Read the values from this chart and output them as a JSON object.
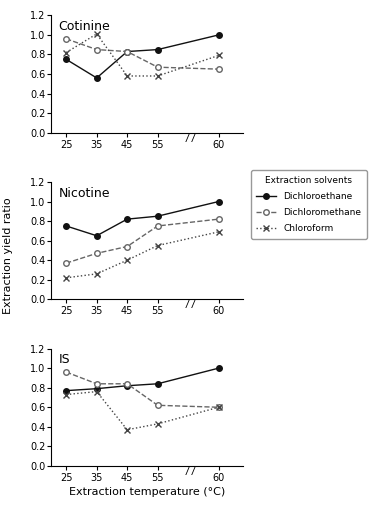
{
  "x_positions": [
    0,
    1,
    2,
    3,
    5
  ],
  "x_labels": [
    "25",
    "35",
    "45",
    "55",
    "60"
  ],
  "cotinine": {
    "dichloroethane": [
      0.75,
      0.56,
      0.83,
      0.85,
      1.0
    ],
    "dichloromethane": [
      0.96,
      0.85,
      0.83,
      0.67,
      0.65
    ],
    "chloroform": [
      0.82,
      1.01,
      0.58,
      0.58,
      0.79
    ]
  },
  "nicotine": {
    "dichloroethane": [
      0.75,
      0.65,
      0.82,
      0.85,
      1.0
    ],
    "dichloromethane": [
      0.37,
      0.47,
      0.54,
      0.75,
      0.82
    ],
    "chloroform": [
      0.22,
      0.26,
      0.4,
      0.55,
      0.69
    ]
  },
  "IS": {
    "dichloroethane": [
      0.77,
      0.79,
      0.82,
      0.84,
      1.0
    ],
    "dichloromethane": [
      0.96,
      0.84,
      0.84,
      0.62,
      0.6
    ],
    "chloroform": [
      0.73,
      0.76,
      0.37,
      0.43,
      0.6
    ]
  },
  "subplot_titles": [
    "Cotinine",
    "Nicotine",
    "IS"
  ],
  "subplot_keys": [
    "cotinine",
    "nicotine",
    "IS"
  ],
  "ylabel": "Extraction yield ratio",
  "xlabel": "Extraction temperature (°C)",
  "legend_title": "Extraction solvents",
  "legend_labels": [
    "Dichloroethane",
    "Dichloromethane",
    "Chloroform"
  ],
  "line_dichloroethane": {
    "color": "#111111",
    "linestyle": "-",
    "marker": "o",
    "markerfacecolor": "#111111",
    "markersize": 4,
    "linewidth": 1.0
  },
  "line_dichloromethane": {
    "color": "#666666",
    "linestyle": "--",
    "marker": "o",
    "markerfacecolor": "white",
    "markersize": 4,
    "linewidth": 1.0
  },
  "line_chloroform": {
    "color": "#444444",
    "linestyle": ":",
    "marker": "x",
    "markerfacecolor": "#444444",
    "markersize": 5,
    "linewidth": 1.0
  },
  "ylim": [
    0.0,
    1.2
  ],
  "yticks": [
    0.0,
    0.2,
    0.4,
    0.6,
    0.8,
    1.0,
    1.2
  ],
  "background_color": "#ffffff",
  "figsize": [
    3.92,
    5.12
  ],
  "dpi": 100
}
